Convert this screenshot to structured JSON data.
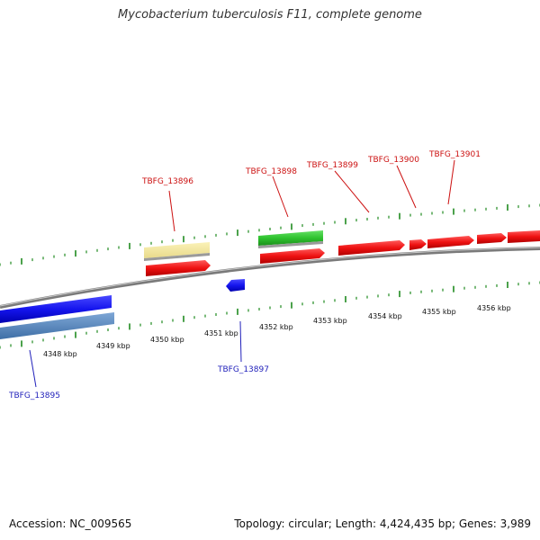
{
  "title": "Mycobacterium tuberculosis F11, complete genome",
  "footer": {
    "accession": "Accession: NC_009565",
    "summary": "Topology: circular; Length: 4,424,435 bp; Genes: 3,989"
  },
  "colors": {
    "backbone": "#8a8a8a",
    "tick": "#1f8a1f",
    "label_red": "#cc1111",
    "label_blue": "#2222bb"
  },
  "tick_labels": [
    "4348 kbp",
    "4349 kbp",
    "4350 kbp",
    "4351 kbp",
    "4352 kbp",
    "4353 kbp",
    "4354 kbp",
    "4355 kbp",
    "4356 kbp"
  ],
  "genes": [
    {
      "label": "TBFG_13895",
      "strand": "minus"
    },
    {
      "label": "TBFG_13896",
      "strand": "plus"
    },
    {
      "label": "TBFG_13897",
      "strand": "minus"
    },
    {
      "label": "TBFG_13898",
      "strand": "plus"
    },
    {
      "label": "TBFG_13899",
      "strand": "plus"
    },
    {
      "label": "TBFG_13900",
      "strand": "plus"
    },
    {
      "label": "TBFG_13901",
      "strand": "plus"
    }
  ]
}
